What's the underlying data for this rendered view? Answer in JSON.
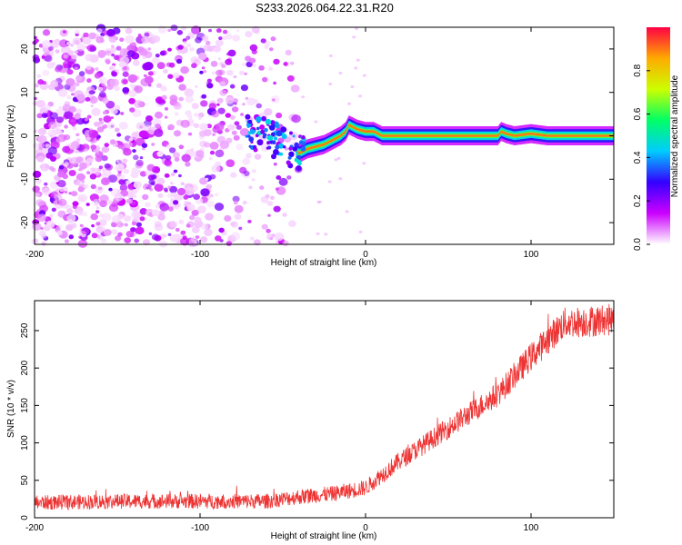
{
  "title": "S233.2026.064.22.31.R20",
  "chart_data": [
    {
      "type": "heatmap",
      "xlabel": "Height of straight line (km)",
      "ylabel": "Frequency (Hz)",
      "xlim": [
        -200,
        150
      ],
      "ylim": [
        -25,
        25
      ],
      "xticks": [
        -200,
        -100,
        0,
        100
      ],
      "yticks": [
        -20,
        -10,
        0,
        10,
        20
      ],
      "colorbar": {
        "label": "Normalized spectral amplitude",
        "range": [
          0,
          1
        ],
        "ticks": [
          0.0,
          0.2,
          0.4,
          0.6,
          0.8
        ],
        "colors": [
          "#ffffff",
          "#cc00ff",
          "#3300ff",
          "#00ccff",
          "#00ff66",
          "#ccff00",
          "#ffaa00",
          "#ff0044"
        ]
      },
      "ridge": {
        "description_points_x": [
          -70,
          -60,
          -50,
          -40,
          -35,
          -30,
          -25,
          -20,
          -15,
          -12,
          -10,
          -5,
          0,
          5,
          10,
          20,
          50,
          80,
          82,
          85,
          90,
          100,
          110,
          150
        ],
        "description_points_y": [
          0.5,
          0.0,
          -2.0,
          -4.0,
          -3.0,
          -2.5,
          -2.0,
          -1.0,
          0.0,
          1.0,
          2.5,
          1.5,
          1.0,
          1.0,
          0.0,
          0.0,
          0.0,
          0.0,
          1.0,
          0.5,
          0.0,
          0.5,
          0.0,
          0.0
        ],
        "band_start_x": 0,
        "band_end_x": 150,
        "band_freq": 0
      },
      "noise_region": {
        "x_from": -200,
        "x_to": -40
      }
    },
    {
      "type": "line",
      "xlabel": "Height of straight line (km)",
      "ylabel": "SNR (10 * v/v)",
      "xlim": [
        -200,
        150
      ],
      "ylim": [
        0,
        290
      ],
      "xticks": [
        -200,
        -100,
        0,
        100
      ],
      "yticks": [
        0,
        50,
        100,
        150,
        200,
        250
      ],
      "color": "#ee3333",
      "series": [
        {
          "name": "SNR",
          "trend_x": [
            -200,
            -150,
            -100,
            -60,
            -40,
            -20,
            0,
            20,
            50,
            80,
            100,
            120,
            150
          ],
          "trend_y": [
            20,
            22,
            22,
            22,
            28,
            32,
            40,
            75,
            120,
            165,
            215,
            260,
            265
          ],
          "noise_amplitude": 15
        }
      ]
    }
  ]
}
